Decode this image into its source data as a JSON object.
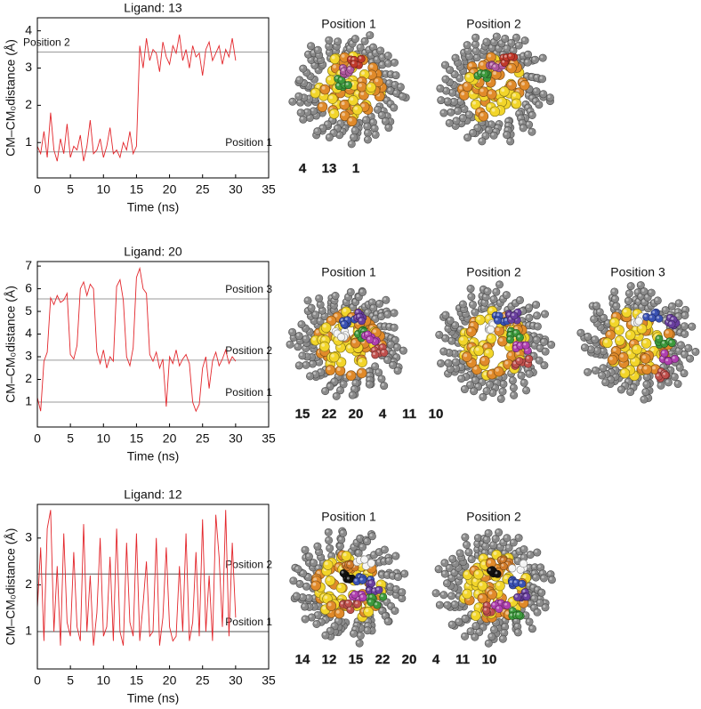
{
  "chart_data": [
    {
      "type": "line",
      "title": "Ligand: 13",
      "xlabel": "Time (ns)",
      "ylabel": "CM–CM₀distance (Å)",
      "xlim": [
        0,
        35
      ],
      "xticks": [
        0,
        5,
        10,
        15,
        20,
        25,
        30,
        35
      ],
      "ylim": [
        0.05,
        4.35
      ],
      "yticks": [
        1,
        2,
        3,
        4
      ],
      "x": [
        0,
        0.5,
        1,
        1.5,
        2,
        2.5,
        3,
        3.5,
        4,
        4.5,
        5,
        5.5,
        6,
        6.5,
        7,
        7.5,
        8,
        8.5,
        9,
        9.5,
        10,
        10.5,
        11,
        11.5,
        12,
        12.5,
        13,
        13.5,
        14,
        14.5,
        15,
        15.5,
        16,
        16.5,
        17,
        17.5,
        18,
        18.5,
        19,
        19.5,
        20,
        20.5,
        21,
        21.5,
        22,
        22.5,
        23,
        23.5,
        24,
        24.5,
        25,
        25.5,
        26,
        26.5,
        27,
        27.5,
        28,
        28.5,
        29,
        29.5,
        30
      ],
      "series": [
        {
          "color": "#e3262b",
          "values": [
            0.9,
            0.7,
            1.3,
            0.6,
            1.8,
            0.8,
            0.5,
            1.1,
            0.7,
            1.5,
            0.6,
            0.9,
            0.8,
            1.2,
            0.5,
            0.9,
            1.6,
            0.7,
            0.8,
            1.1,
            0.6,
            0.9,
            1.4,
            0.7,
            0.8,
            0.6,
            1.0,
            0.8,
            1.3,
            0.7,
            0.9,
            3.6,
            3.0,
            3.8,
            3.2,
            3.5,
            3.4,
            2.9,
            3.7,
            3.3,
            3.1,
            3.6,
            3.4,
            3.9,
            3.2,
            3.5,
            3.0,
            3.6,
            3.3,
            3.4,
            2.8,
            3.5,
            3.7,
            3.2,
            3.4,
            3.6,
            3.1,
            3.5,
            3.3,
            3.8,
            3.2
          ]
        }
      ],
      "reference_lines": [
        {
          "label": "Position 2",
          "value": 3.43
        },
        {
          "label": "Position 1",
          "value": 0.75
        }
      ],
      "reference_color": "#9a9a9a"
    },
    {
      "type": "line",
      "title": "Ligand: 20",
      "xlabel": "Time (ns)",
      "ylabel": "CM–CM₀distance (Å)",
      "xlim": [
        0,
        35
      ],
      "xticks": [
        0,
        5,
        10,
        15,
        20,
        25,
        30,
        35
      ],
      "ylim": [
        -0.1,
        7.2
      ],
      "yticks": [
        1,
        2,
        3,
        4,
        5,
        6,
        7
      ],
      "x": [
        0,
        0.5,
        1,
        1.5,
        2,
        2.5,
        3,
        3.5,
        4,
        4.5,
        5,
        5.5,
        6,
        6.5,
        7,
        7.5,
        8,
        8.5,
        9,
        9.5,
        10,
        10.5,
        11,
        11.5,
        12,
        12.5,
        13,
        13.5,
        14,
        14.5,
        15,
        15.5,
        16,
        16.5,
        17,
        17.5,
        18,
        18.5,
        19,
        19.5,
        20,
        20.5,
        21,
        21.5,
        22,
        22.5,
        23,
        23.5,
        24,
        24.5,
        25,
        25.5,
        26,
        26.5,
        27,
        27.5,
        28,
        28.5,
        29,
        29.5,
        30
      ],
      "series": [
        {
          "color": "#e3262b",
          "values": [
            1.2,
            0.6,
            2.8,
            3.2,
            5.6,
            5.3,
            5.7,
            5.4,
            5.5,
            5.8,
            3.1,
            2.9,
            3.5,
            6.0,
            6.3,
            5.7,
            6.2,
            6.0,
            3.2,
            2.7,
            3.3,
            2.5,
            3.0,
            2.8,
            6.1,
            6.4,
            5.5,
            3.0,
            2.6,
            3.4,
            6.5,
            6.9,
            6.0,
            5.8,
            3.1,
            2.8,
            3.2,
            2.5,
            2.9,
            0.8,
            3.0,
            2.7,
            3.3,
            2.6,
            2.9,
            3.1,
            2.7,
            1.0,
            0.6,
            0.9,
            2.5,
            3.0,
            1.6,
            2.8,
            3.2,
            2.6,
            2.9,
            3.3,
            2.7,
            3.0,
            2.8
          ]
        }
      ],
      "reference_lines": [
        {
          "label": "Position 3",
          "value": 5.55
        },
        {
          "label": "Position 2",
          "value": 2.85
        },
        {
          "label": "Position 1",
          "value": 1.0
        }
      ],
      "reference_color": "#9a9a9a"
    },
    {
      "type": "line",
      "title": "Ligand: 12",
      "xlabel": "Time (ns)",
      "ylabel": "CM–CM₀distance (Å)",
      "xlim": [
        0,
        35
      ],
      "xticks": [
        0,
        5,
        10,
        15,
        20,
        25,
        30,
        35
      ],
      "ylim": [
        0.2,
        3.72
      ],
      "yticks": [
        1,
        2,
        3
      ],
      "x": [
        0,
        0.5,
        1,
        1.5,
        2,
        2.5,
        3,
        3.5,
        4,
        4.5,
        5,
        5.5,
        6,
        6.5,
        7,
        7.5,
        8,
        8.5,
        9,
        9.5,
        10,
        10.5,
        11,
        11.5,
        12,
        12.5,
        13,
        13.5,
        14,
        14.5,
        15,
        15.5,
        16,
        16.5,
        17,
        17.5,
        18,
        18.5,
        19,
        19.5,
        20,
        20.5,
        21,
        21.5,
        22,
        22.5,
        23,
        23.5,
        24,
        24.5,
        25,
        25.5,
        26,
        26.5,
        27,
        27.5,
        28,
        28.5,
        29,
        29.5,
        30
      ],
      "series": [
        {
          "color": "#e3262b",
          "values": [
            1.5,
            2.8,
            0.8,
            3.2,
            3.6,
            1.0,
            2.4,
            0.7,
            3.1,
            1.2,
            0.9,
            2.7,
            1.1,
            0.8,
            3.3,
            1.0,
            2.2,
            0.7,
            1.4,
            3.0,
            0.9,
            1.1,
            2.6,
            0.8,
            3.2,
            1.0,
            0.7,
            2.9,
            1.2,
            0.9,
            3.1,
            0.8,
            1.6,
            2.5,
            0.9,
            1.0,
            3.0,
            0.7,
            1.3,
            2.8,
            1.1,
            0.8,
            0.9,
            2.4,
            1.0,
            3.1,
            0.8,
            1.2,
            2.7,
            0.9,
            3.4,
            1.0,
            2.2,
            0.8,
            3.5,
            2.6,
            1.1,
            3.6,
            0.9,
            2.9,
            1.3
          ]
        }
      ],
      "reference_lines": [
        {
          "label": "Position 2",
          "value": 2.23
        },
        {
          "label": "Position 1",
          "value": 1.0
        }
      ],
      "reference_color": "#555555"
    }
  ],
  "structures": [
    {
      "positions": [
        "Position 1",
        "Position 2"
      ],
      "ligands": [
        {
          "label": "4",
          "color": "#3c9a3c"
        },
        {
          "label": "13",
          "color": "#b0589e"
        },
        {
          "label": "1",
          "color": "#c0392b"
        }
      ]
    },
    {
      "positions": [
        "Position 1",
        "Position 2",
        "Position 3"
      ],
      "ligands": [
        {
          "label": "15",
          "color": "#f4f4f4"
        },
        {
          "label": "22",
          "color": "#3a52b4"
        },
        {
          "label": "20",
          "color": "#6a3fa0"
        },
        {
          "label": "4",
          "color": "#3c9a3c"
        },
        {
          "label": "11",
          "color": "#b040b0"
        },
        {
          "label": "10",
          "color": "#c0504d"
        }
      ]
    },
    {
      "positions": [
        "Position 1",
        "Position 2"
      ],
      "ligands": [
        {
          "label": "14",
          "color": "#111111"
        },
        {
          "label": "12",
          "color": "#d07a2a"
        },
        {
          "label": "15",
          "color": "#f4f4f4"
        },
        {
          "label": "22",
          "color": "#3a52b4"
        },
        {
          "label": "20",
          "color": "#6a3fa0"
        },
        {
          "label": "4",
          "color": "#3c9a3c"
        },
        {
          "label": "11",
          "color": "#b040b0"
        },
        {
          "label": "10",
          "color": "#c0504d"
        }
      ]
    }
  ]
}
